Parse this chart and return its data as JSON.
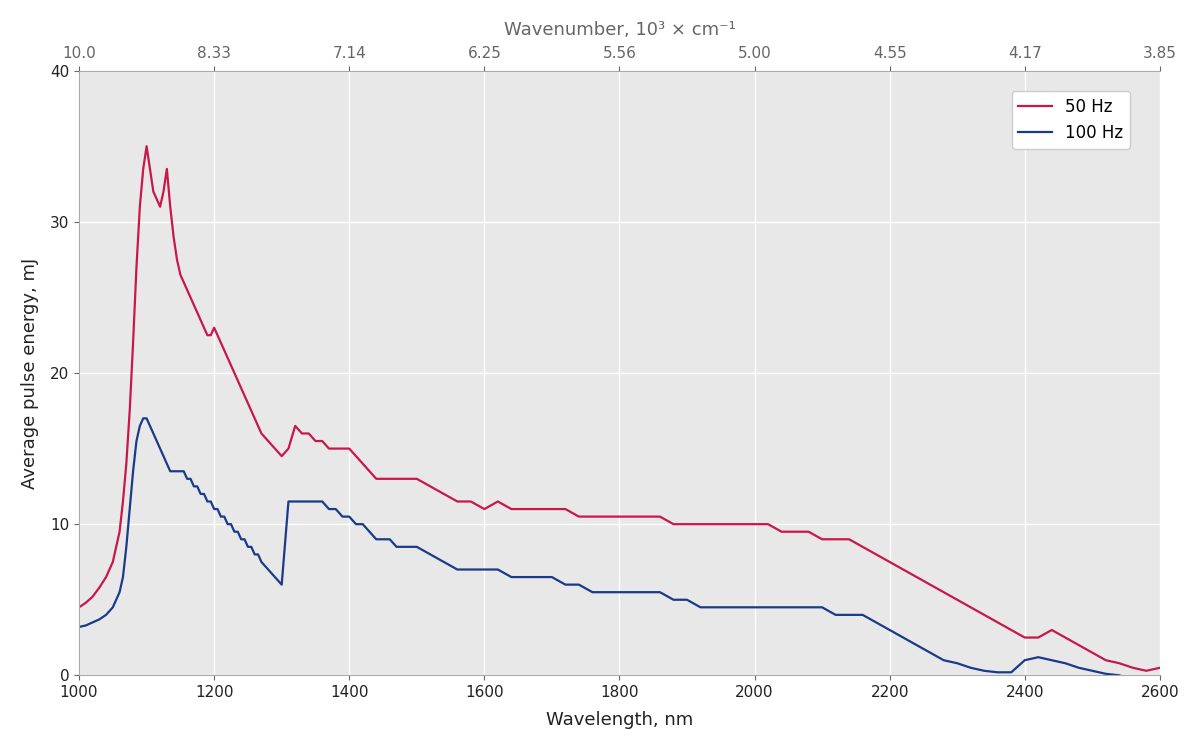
{
  "xlabel": "Wavelength, nm",
  "ylabel": "Average pulse energy, mJ",
  "top_xlabel": "Wavenumber, 10³ × cm⁻¹",
  "xlim": [
    1000,
    2600
  ],
  "ylim": [
    0,
    40
  ],
  "x_ticks": [
    1000,
    1200,
    1400,
    1600,
    1800,
    2000,
    2200,
    2400,
    2600
  ],
  "y_ticks": [
    0,
    10,
    20,
    30,
    40
  ],
  "top_x_ticks_nm": [
    1000,
    1200,
    1400,
    1600,
    1800,
    2000,
    2200,
    2400,
    2600
  ],
  "top_x_tick_labels": [
    "10.0",
    "8.33",
    "7.14",
    "6.25",
    "5.56",
    "5.00",
    "4.55",
    "4.17",
    "3.85"
  ],
  "color_50hz": "#c8184a",
  "color_100hz": "#1a3a8a",
  "legend_50hz": "50 Hz",
  "legend_100hz": "100 Hz",
  "plot_bg_color": "#e8e8e8",
  "fig_bg_color": "#ffffff",
  "grid_color": "#ffffff",
  "line_width": 1.6,
  "wl_50hz": [
    1000,
    1010,
    1020,
    1030,
    1040,
    1050,
    1060,
    1065,
    1070,
    1075,
    1080,
    1085,
    1090,
    1095,
    1100,
    1105,
    1110,
    1115,
    1120,
    1125,
    1130,
    1135,
    1140,
    1145,
    1150,
    1155,
    1160,
    1165,
    1170,
    1175,
    1180,
    1185,
    1190,
    1195,
    1200,
    1205,
    1210,
    1215,
    1220,
    1225,
    1230,
    1235,
    1240,
    1245,
    1250,
    1255,
    1260,
    1265,
    1270,
    1280,
    1290,
    1300,
    1310,
    1320,
    1330,
    1340,
    1350,
    1360,
    1370,
    1380,
    1390,
    1400,
    1410,
    1420,
    1430,
    1440,
    1450,
    1460,
    1470,
    1480,
    1490,
    1500,
    1520,
    1540,
    1560,
    1580,
    1600,
    1620,
    1640,
    1660,
    1680,
    1700,
    1720,
    1740,
    1760,
    1780,
    1800,
    1820,
    1840,
    1860,
    1880,
    1900,
    1920,
    1940,
    1960,
    1980,
    2000,
    2020,
    2040,
    2060,
    2080,
    2100,
    2120,
    2140,
    2160,
    2180,
    2200,
    2220,
    2240,
    2260,
    2280,
    2300,
    2320,
    2340,
    2360,
    2380,
    2400,
    2420,
    2440,
    2460,
    2480,
    2500,
    2520,
    2540,
    2560,
    2580,
    2600
  ],
  "en_50hz": [
    4.5,
    4.8,
    5.2,
    5.8,
    6.5,
    7.5,
    9.5,
    11.5,
    14.0,
    17.5,
    22.0,
    27.0,
    31.0,
    33.5,
    35.0,
    33.5,
    32.0,
    31.5,
    31.0,
    32.0,
    33.5,
    31.0,
    29.0,
    27.5,
    26.5,
    26.0,
    25.5,
    25.0,
    24.5,
    24.0,
    23.5,
    23.0,
    22.5,
    22.5,
    23.0,
    22.5,
    22.0,
    21.5,
    21.0,
    20.5,
    20.0,
    19.5,
    19.0,
    18.5,
    18.0,
    17.5,
    17.0,
    16.5,
    16.0,
    15.5,
    15.0,
    14.5,
    15.0,
    16.5,
    16.0,
    16.0,
    15.5,
    15.5,
    15.0,
    15.0,
    15.0,
    15.0,
    14.5,
    14.0,
    13.5,
    13.0,
    13.0,
    13.0,
    13.0,
    13.0,
    13.0,
    13.0,
    12.5,
    12.0,
    11.5,
    11.5,
    11.0,
    11.5,
    11.0,
    11.0,
    11.0,
    11.0,
    11.0,
    10.5,
    10.5,
    10.5,
    10.5,
    10.5,
    10.5,
    10.5,
    10.0,
    10.0,
    10.0,
    10.0,
    10.0,
    10.0,
    10.0,
    10.0,
    9.5,
    9.5,
    9.5,
    9.0,
    9.0,
    9.0,
    8.5,
    8.0,
    7.5,
    7.0,
    6.5,
    6.0,
    5.5,
    5.0,
    4.5,
    4.0,
    3.5,
    3.0,
    2.5,
    2.5,
    3.0,
    2.5,
    2.0,
    1.5,
    1.0,
    0.8,
    0.5,
    0.3,
    0.5
  ],
  "wl_100hz": [
    1000,
    1010,
    1020,
    1030,
    1040,
    1050,
    1060,
    1065,
    1070,
    1075,
    1080,
    1085,
    1090,
    1095,
    1100,
    1105,
    1110,
    1115,
    1120,
    1125,
    1130,
    1135,
    1140,
    1145,
    1150,
    1155,
    1160,
    1165,
    1170,
    1175,
    1180,
    1185,
    1190,
    1195,
    1200,
    1205,
    1210,
    1215,
    1220,
    1225,
    1230,
    1235,
    1240,
    1245,
    1250,
    1255,
    1260,
    1265,
    1270,
    1280,
    1290,
    1300,
    1310,
    1320,
    1330,
    1340,
    1350,
    1360,
    1370,
    1380,
    1390,
    1400,
    1410,
    1420,
    1430,
    1440,
    1450,
    1460,
    1470,
    1480,
    1490,
    1500,
    1520,
    1540,
    1560,
    1580,
    1600,
    1620,
    1640,
    1660,
    1680,
    1700,
    1720,
    1740,
    1760,
    1780,
    1800,
    1820,
    1840,
    1860,
    1880,
    1900,
    1920,
    1940,
    1960,
    1980,
    2000,
    2020,
    2040,
    2060,
    2080,
    2100,
    2120,
    2140,
    2160,
    2180,
    2200,
    2220,
    2240,
    2260,
    2280,
    2300,
    2320,
    2340,
    2360,
    2380,
    2400,
    2420,
    2440,
    2460,
    2480,
    2500,
    2520,
    2540,
    2560,
    2580,
    2600
  ],
  "en_100hz": [
    3.2,
    3.3,
    3.5,
    3.7,
    4.0,
    4.5,
    5.5,
    6.5,
    8.5,
    11.0,
    13.5,
    15.5,
    16.5,
    17.0,
    17.0,
    16.5,
    16.0,
    15.5,
    15.0,
    14.5,
    14.0,
    13.5,
    13.5,
    13.5,
    13.5,
    13.5,
    13.0,
    13.0,
    12.5,
    12.5,
    12.0,
    12.0,
    11.5,
    11.5,
    11.0,
    11.0,
    10.5,
    10.5,
    10.0,
    10.0,
    9.5,
    9.5,
    9.0,
    9.0,
    8.5,
    8.5,
    8.0,
    8.0,
    7.5,
    7.0,
    6.5,
    6.0,
    11.5,
    11.5,
    11.5,
    11.5,
    11.5,
    11.5,
    11.0,
    11.0,
    10.5,
    10.5,
    10.0,
    10.0,
    9.5,
    9.0,
    9.0,
    9.0,
    8.5,
    8.5,
    8.5,
    8.5,
    8.0,
    7.5,
    7.0,
    7.0,
    7.0,
    7.0,
    6.5,
    6.5,
    6.5,
    6.5,
    6.0,
    6.0,
    5.5,
    5.5,
    5.5,
    5.5,
    5.5,
    5.5,
    5.0,
    5.0,
    4.5,
    4.5,
    4.5,
    4.5,
    4.5,
    4.5,
    4.5,
    4.5,
    4.5,
    4.5,
    4.0,
    4.0,
    4.0,
    3.5,
    3.0,
    2.5,
    2.0,
    1.5,
    1.0,
    0.8,
    0.5,
    0.3,
    0.2,
    0.2,
    1.0,
    1.2,
    1.0,
    0.8,
    0.5,
    0.3,
    0.1,
    0.0,
    -0.3,
    -0.5,
    -0.5
  ]
}
